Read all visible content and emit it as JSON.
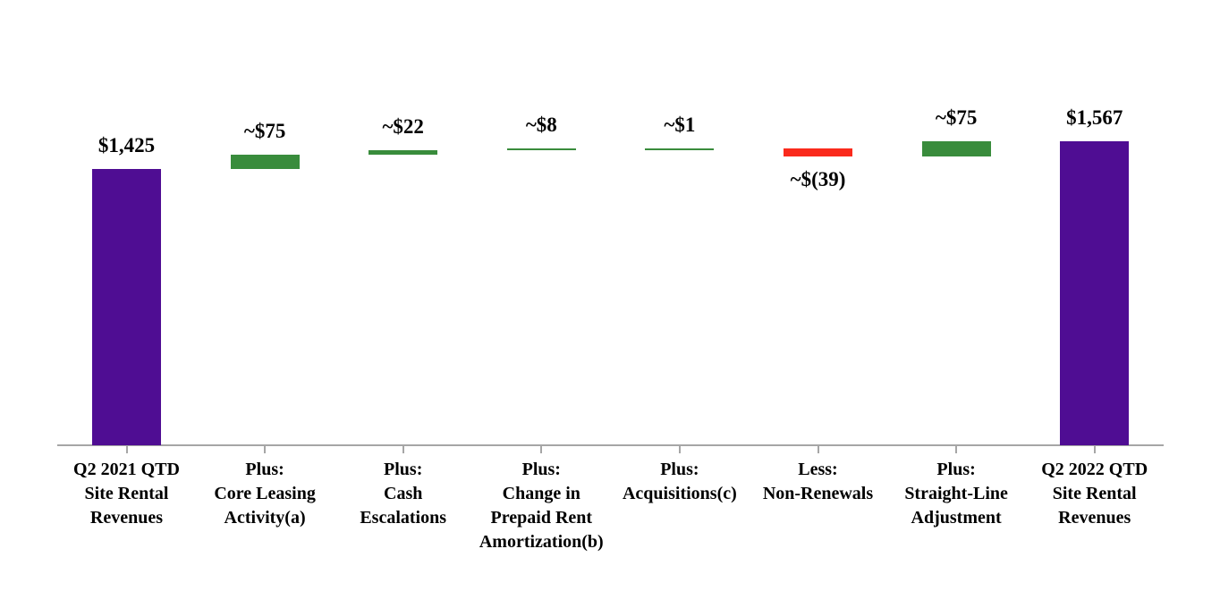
{
  "chart_data": {
    "type": "bar",
    "subtype": "waterfall",
    "title": "",
    "y_axis_visible": false,
    "grid": false,
    "legend": "none",
    "implied_value_range": [
      0,
      1700
    ],
    "colors": {
      "total": "#4F0D93",
      "increase": "#398C3C",
      "decrease": "#FA2A1C",
      "axis": "#A6A6A6",
      "label_text": "#000000"
    },
    "categories": [
      "Q2 2021 QTD\nSite Rental\nRevenues",
      "Plus:\nCore Leasing\nActivity(a)",
      "Plus:\nCash\nEscalations",
      "Plus:\nChange in\nPrepaid Rent\nAmortization(b)",
      "Plus:\nAcquisitions(c)",
      "Less:\nNon-Renewals",
      "Plus:\nStraight-Line\nAdjustment",
      "Q2 2022 QTD\nSite Rental\nRevenues"
    ],
    "bars": [
      {
        "label": "$1,425",
        "type": "total",
        "value": 1425
      },
      {
        "label": "~$75",
        "type": "increase",
        "value": 75
      },
      {
        "label": "~$22",
        "type": "increase",
        "value": 22
      },
      {
        "label": "~$8",
        "type": "increase",
        "value": 8
      },
      {
        "label": "~$1",
        "type": "increase",
        "value": 1
      },
      {
        "label": "~$(39)",
        "type": "decrease",
        "value": -39
      },
      {
        "label": "~$75",
        "type": "increase",
        "value": 75
      },
      {
        "label": "$1,567",
        "type": "total",
        "value": 1567
      }
    ]
  }
}
